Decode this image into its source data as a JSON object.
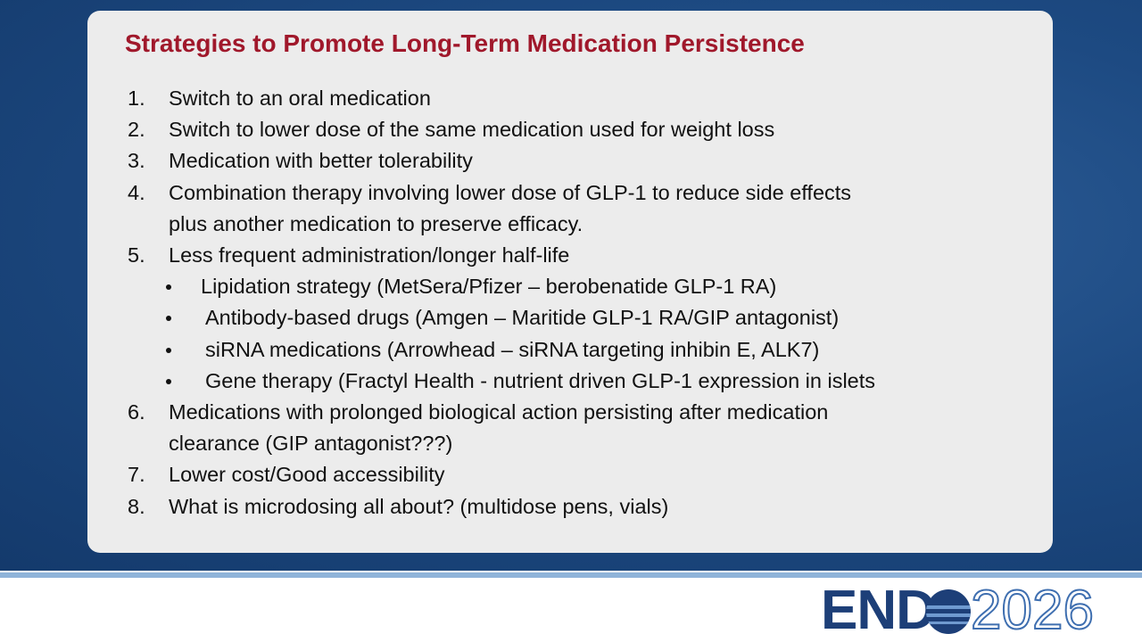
{
  "slide": {
    "title": "Strategies to Promote Long-Term Medication Persistence",
    "items": [
      {
        "number": "1.",
        "lines": [
          "Switch to an oral medication"
        ]
      },
      {
        "number": "2.",
        "lines": [
          "Switch to lower dose of the same medication used for weight loss"
        ]
      },
      {
        "number": "3.",
        "lines": [
          "Medication with better tolerability"
        ]
      },
      {
        "number": "4.",
        "lines": [
          "Combination therapy involving lower dose of GLP-1 to reduce side effects",
          "plus another medication to preserve efficacy."
        ]
      },
      {
        "number": "5.",
        "lines": [
          "Less frequent administration/longer half-life"
        ],
        "subitems": [
          "Lipidation strategy (MetSera/Pfizer – berobenatide GLP-1 RA)",
          "Antibody-based drugs (Amgen – Maritide GLP-1 RA/GIP antagonist)",
          "siRNA medications (Arrowhead – siRNA targeting inhibin E, ALK7)",
          "Gene therapy (Fractyl Health - nutrient driven GLP-1 expression in islets"
        ]
      },
      {
        "number": "6.",
        "lines": [
          "Medications with prolonged biological action persisting after medication",
          "clearance (GIP antagonist???)"
        ]
      },
      {
        "number": "7.",
        "lines": [
          "Lower cost/Good accessibility"
        ]
      },
      {
        "number": "8.",
        "lines": [
          "What is microdosing all about? (multidose pens, vials)"
        ]
      }
    ],
    "logo": {
      "word": "END",
      "year": "2026"
    }
  }
}
